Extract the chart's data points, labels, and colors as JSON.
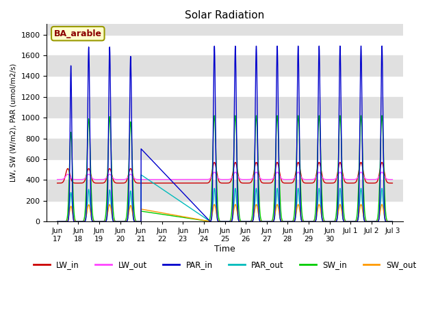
{
  "title": "Solar Radiation",
  "xlabel": "Time",
  "ylabel": "LW, SW (W/m2), PAR (umol/m2/s)",
  "annotation": "BA_arable",
  "ylim": [
    0,
    1900
  ],
  "series_colors": {
    "LW_in": "#cc0000",
    "LW_out": "#ff44ff",
    "PAR_in": "#0000cc",
    "PAR_out": "#00bbbb",
    "SW_in": "#00cc00",
    "SW_out": "#ff9900"
  },
  "bg_band_color": "#e0e0e0",
  "yticks": [
    0,
    200,
    400,
    600,
    800,
    1000,
    1200,
    1400,
    1600,
    1800
  ]
}
